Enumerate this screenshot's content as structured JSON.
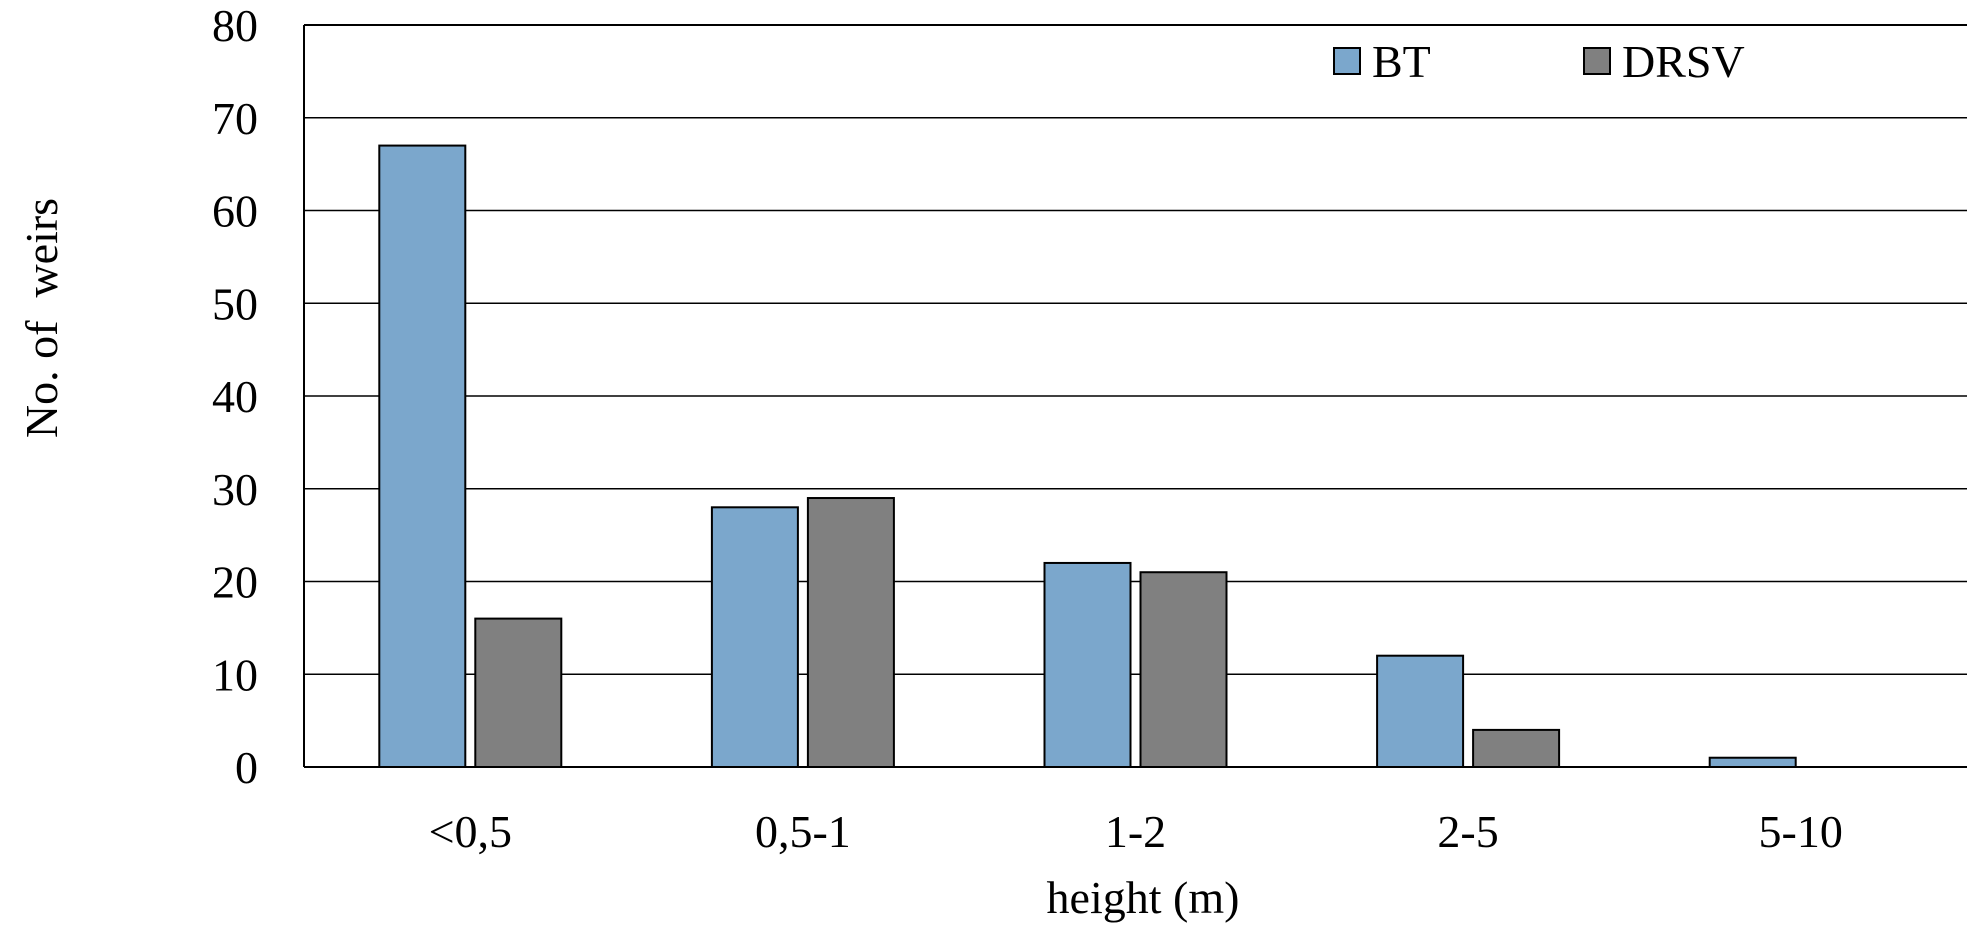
{
  "chart_data": {
    "type": "bar",
    "title": "",
    "xlabel": "height (m)",
    "ylabel": "No. of  weirs",
    "categories": [
      "<0,5",
      "0,5-1",
      "1-2",
      "2-5",
      "5-10"
    ],
    "series": [
      {
        "name": "BT",
        "color": "#7ba7cc",
        "values": [
          67,
          28,
          22,
          12,
          1
        ]
      },
      {
        "name": "DRSV",
        "color": "#808080",
        "values": [
          16,
          29,
          21,
          4,
          0
        ]
      }
    ],
    "ylim": [
      0,
      80
    ],
    "yticks": [
      0,
      10,
      20,
      30,
      40,
      50,
      60,
      70,
      80
    ],
    "grid": true,
    "legend_position": "top-right"
  }
}
